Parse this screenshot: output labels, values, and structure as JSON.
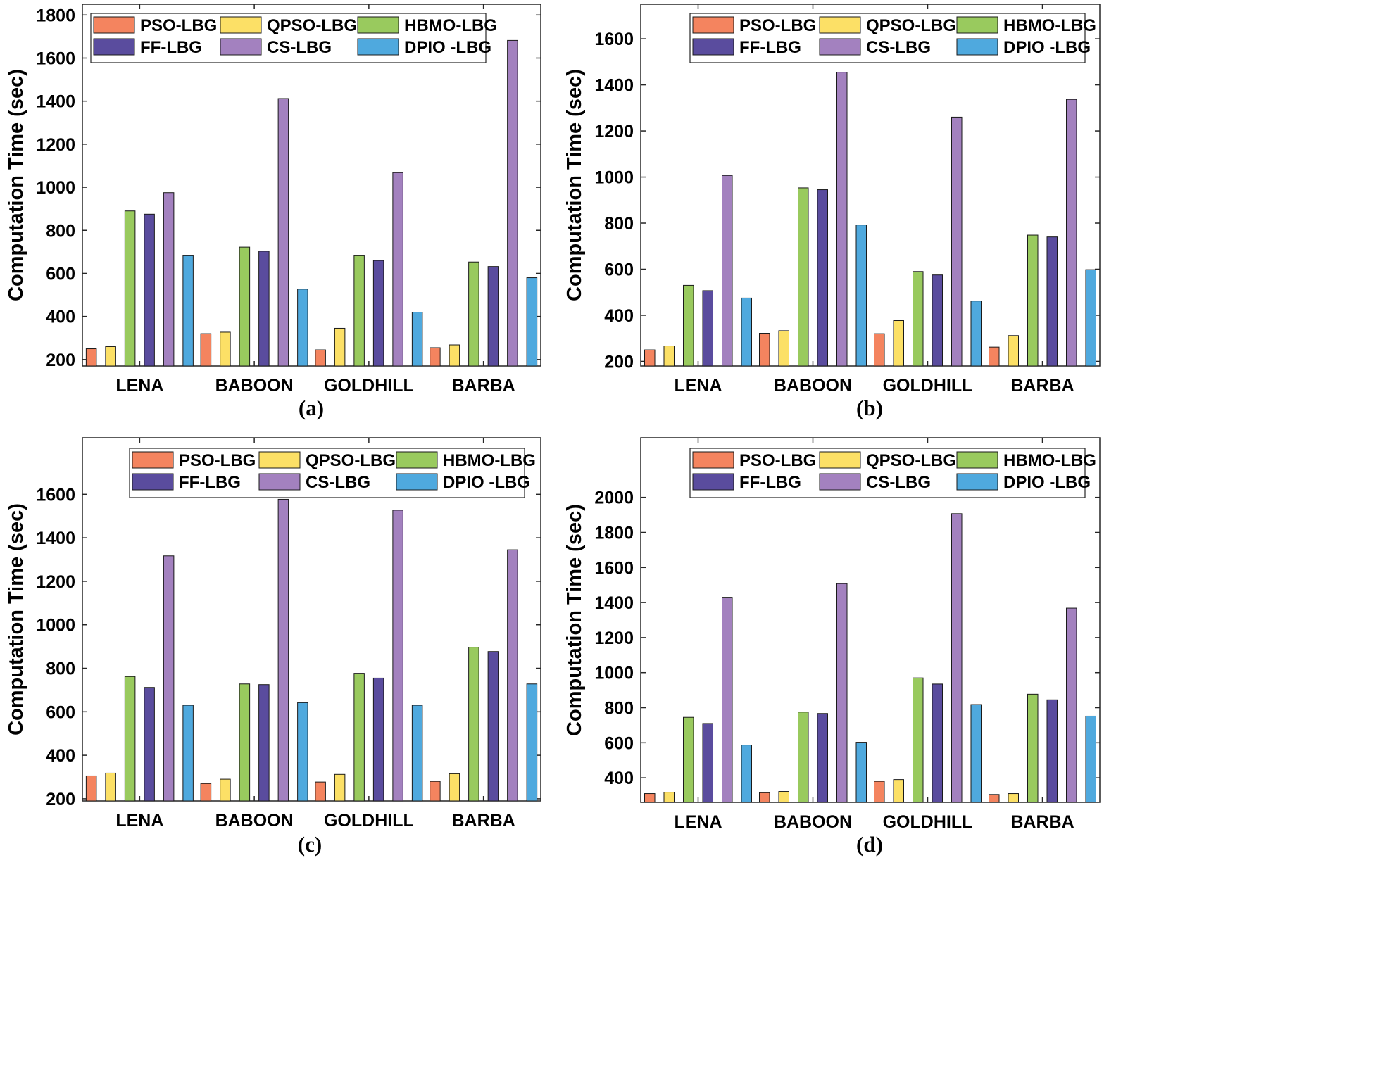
{
  "figure": {
    "series_colors": [
      "#F4845F",
      "#FCE066",
      "#99CA5E",
      "#5A4C9E",
      "#A381BF",
      "#4FA9DE"
    ]
  },
  "chart_data": [
    {
      "panel": "a",
      "caption": "(a)",
      "type": "bar",
      "ylabel": "Computation Time (sec)",
      "xlabel": "",
      "categories": [
        "LENA",
        "BABOON",
        "GOLDHILL",
        "BARBA"
      ],
      "ylim": [
        170,
        1850
      ],
      "yticks": [
        200,
        400,
        600,
        800,
        1000,
        1200,
        1400,
        1600,
        1800
      ],
      "legend_position": "top",
      "series": [
        {
          "name": "PSO-LBG",
          "values": [
            250,
            320,
            245,
            255
          ]
        },
        {
          "name": "QPSO-LBG",
          "values": [
            260,
            327,
            345,
            268
          ]
        },
        {
          "name": "HBMO-LBG",
          "values": [
            890,
            722,
            682,
            653
          ]
        },
        {
          "name": "FF-LBG",
          "values": [
            875,
            703,
            660,
            632
          ]
        },
        {
          "name": "CS-LBG",
          "values": [
            975,
            1412,
            1068,
            1682
          ]
        },
        {
          "name": "DPIO -LBG",
          "values": [
            682,
            527,
            420,
            580
          ]
        }
      ]
    },
    {
      "panel": "b",
      "caption": "(b)",
      "type": "bar",
      "ylabel": "Computation Time (sec)",
      "xlabel": "",
      "categories": [
        "LENA",
        "BABOON",
        "GOLDHILL",
        "BARBA"
      ],
      "ylim": [
        180,
        1750
      ],
      "yticks": [
        200,
        400,
        600,
        800,
        1000,
        1200,
        1400,
        1600
      ],
      "legend_position": "top",
      "series": [
        {
          "name": "PSO-LBG",
          "values": [
            250,
            322,
            320,
            262
          ]
        },
        {
          "name": "QPSO-LBG",
          "values": [
            267,
            333,
            377,
            312
          ]
        },
        {
          "name": "HBMO-LBG",
          "values": [
            530,
            953,
            590,
            748
          ]
        },
        {
          "name": "FF-LBG",
          "values": [
            507,
            945,
            575,
            740
          ]
        },
        {
          "name": "CS-LBG",
          "values": [
            1007,
            1455,
            1260,
            1337
          ]
        },
        {
          "name": "DPIO -LBG",
          "values": [
            475,
            792,
            462,
            598
          ]
        }
      ]
    },
    {
      "panel": "c",
      "caption": "(c)",
      "type": "bar",
      "ylabel": "Computation Time (sec)",
      "xlabel": "",
      "categories": [
        "LENA",
        "BABOON",
        "GOLDHILL",
        "BARBA"
      ],
      "ylim": [
        190,
        1860
      ],
      "yticks": [
        200,
        400,
        600,
        800,
        1000,
        1200,
        1400,
        1600
      ],
      "legend_position": "top",
      "series": [
        {
          "name": "PSO-LBG",
          "values": [
            305,
            270,
            277,
            280
          ]
        },
        {
          "name": "QPSO-LBG",
          "values": [
            318,
            290,
            312,
            315
          ]
        },
        {
          "name": "HBMO-LBG",
          "values": [
            762,
            728,
            777,
            897
          ]
        },
        {
          "name": "FF-LBG",
          "values": [
            712,
            725,
            755,
            877
          ]
        },
        {
          "name": "CS-LBG",
          "values": [
            1317,
            1577,
            1527,
            1345
          ]
        },
        {
          "name": "DPIO -LBG",
          "values": [
            630,
            642,
            630,
            728
          ]
        }
      ]
    },
    {
      "panel": "d",
      "caption": "(d)",
      "type": "bar",
      "ylabel": "Computation Time (sec)",
      "xlabel": "",
      "categories": [
        "LENA",
        "BABOON",
        "GOLDHILL",
        "BARBA"
      ],
      "ylim": [
        260,
        2340
      ],
      "yticks": [
        400,
        600,
        800,
        1000,
        1200,
        1400,
        1600,
        1800,
        2000
      ],
      "legend_position": "top",
      "series": [
        {
          "name": "PSO-LBG",
          "values": [
            310,
            315,
            380,
            305
          ]
        },
        {
          "name": "QPSO-LBG",
          "values": [
            318,
            322,
            390,
            310
          ]
        },
        {
          "name": "HBMO-LBG",
          "values": [
            745,
            775,
            970,
            877
          ]
        },
        {
          "name": "FF-LBG",
          "values": [
            710,
            767,
            935,
            845
          ]
        },
        {
          "name": "CS-LBG",
          "values": [
            1430,
            1508,
            1907,
            1368
          ]
        },
        {
          "name": "DPIO -LBG",
          "values": [
            587,
            603,
            818,
            752
          ]
        }
      ]
    }
  ]
}
